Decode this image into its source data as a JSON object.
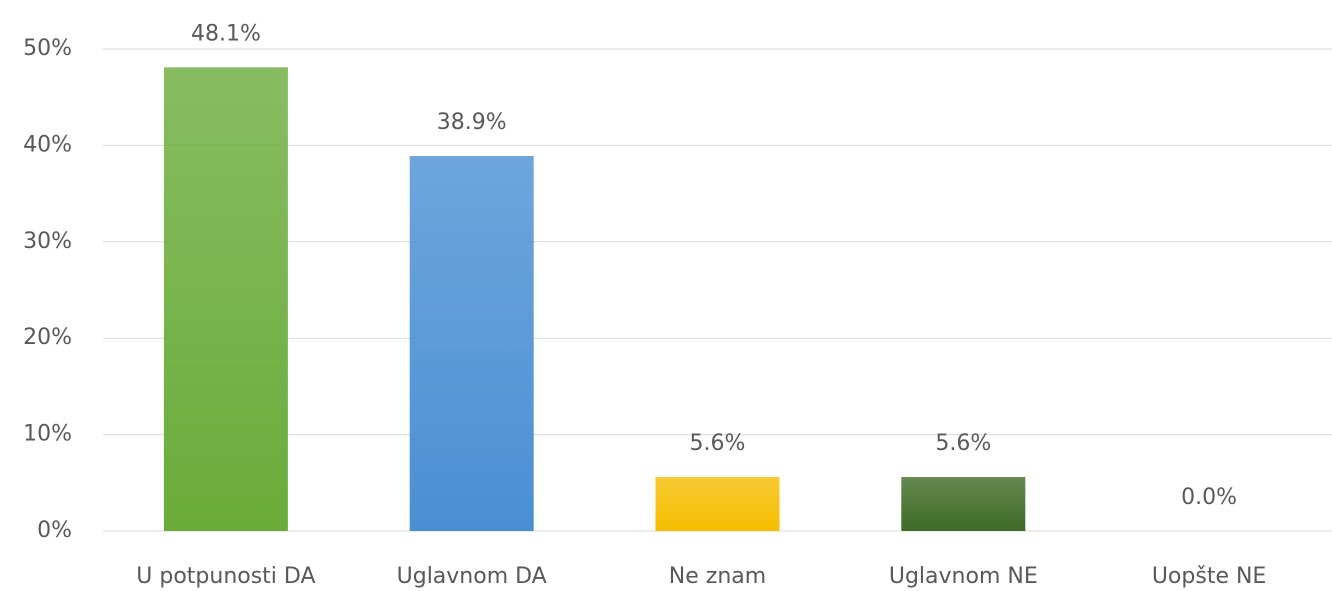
{
  "chart_data": {
    "type": "bar",
    "categories": [
      "U potpunosti DA",
      "Uglavnom DA",
      "Ne znam",
      "Uglavnom NE",
      "Uopšte NE"
    ],
    "values": [
      48.1,
      38.9,
      5.6,
      5.6,
      0
    ],
    "value_labels": [
      "48.1%",
      "38.9%",
      "5.6%",
      "5.6%",
      "0.0%"
    ],
    "colors": [
      "#6aac3a",
      "#4a8fd4",
      "#f5bd00",
      "#3f6b25",
      "#7f7f7f"
    ],
    "ylim": [
      0,
      50
    ],
    "yticks": [
      {
        "value": 0,
        "label": "0%"
      },
      {
        "value": 10,
        "label": "10%"
      },
      {
        "value": 20,
        "label": "20%"
      },
      {
        "value": 30,
        "label": "30%"
      },
      {
        "value": 40,
        "label": "40%"
      },
      {
        "value": 50,
        "label": "50%"
      }
    ],
    "grid": true
  }
}
